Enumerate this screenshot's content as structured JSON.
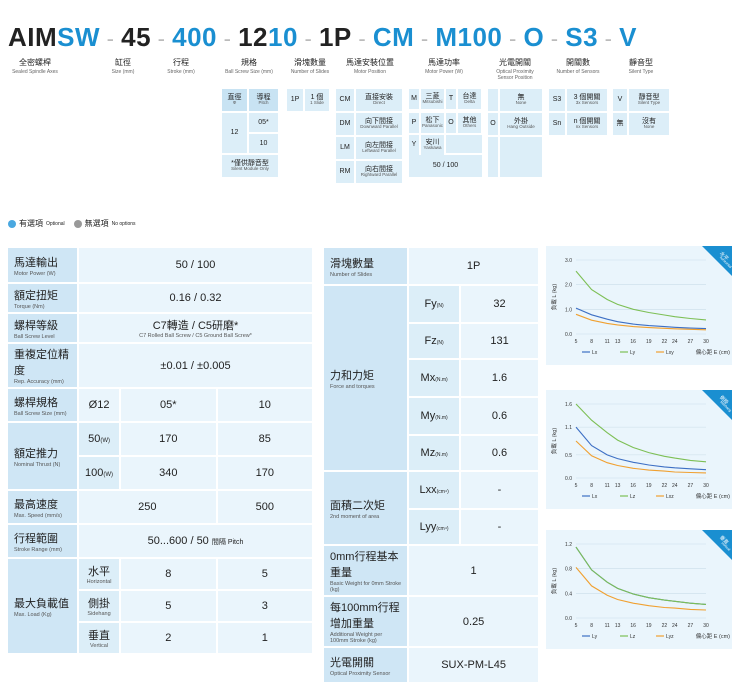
{
  "code": {
    "parts": [
      {
        "text": "AIM",
        "color": "dark"
      },
      {
        "text": "SW",
        "color": "blue"
      },
      {
        "text": "-",
        "color": "dash"
      },
      {
        "text": "45",
        "color": "dark"
      },
      {
        "text": "-",
        "color": "dash"
      },
      {
        "text": "400",
        "color": "blue"
      },
      {
        "text": "-",
        "color": "dash"
      },
      {
        "text": "12",
        "color": "dark"
      },
      {
        "text": "10",
        "color": "blue"
      },
      {
        "text": "-",
        "color": "dash"
      },
      {
        "text": "1P",
        "color": "dark"
      },
      {
        "text": "-",
        "color": "dash"
      },
      {
        "text": "CM",
        "color": "blue"
      },
      {
        "text": "-",
        "color": "dash"
      },
      {
        "text": "M100",
        "color": "blue"
      },
      {
        "text": "-",
        "color": "dash"
      },
      {
        "text": "O",
        "color": "blue"
      },
      {
        "text": "-",
        "color": "dash"
      },
      {
        "text": "S3",
        "color": "blue"
      },
      {
        "text": "-",
        "color": "dash"
      },
      {
        "text": "V",
        "color": "blue"
      }
    ],
    "labels": [
      {
        "cn": "全密螺桿",
        "en": "Sealed Spindle Axes"
      },
      {
        "cn": "缸徑",
        "en": "Size (mm)"
      },
      {
        "cn": "行程",
        "en": "Stroke (mm)"
      },
      {
        "cn": "規格",
        "en": "Ball Screw Size (mm)"
      },
      {
        "cn": "滑塊數量",
        "en": "Number of Slides"
      },
      {
        "cn": "馬達安裝位置",
        "en": "Motor Position"
      },
      {
        "cn": "馬達功率",
        "en": "Motor Power (W)"
      },
      {
        "cn": "光電開關",
        "en": "Optical Proximity Sensor Position"
      },
      {
        "cn": "開關數",
        "en": "Number of Sensors"
      },
      {
        "cn": "靜音型",
        "en": "Silent Type"
      }
    ]
  },
  "options": {
    "screw_header": {
      "dia": "直徑",
      "dia_sym": "Φ",
      "pitch": "導程",
      "pitch_en": "Pitch"
    },
    "screw_dia": "12",
    "screw_pitches": [
      "05*",
      "10"
    ],
    "screw_note": "*僅供靜音型",
    "screw_note_en": "Silent Module Only",
    "slide": {
      "code": "1P",
      "cn": "1 個",
      "en": "1 Slide"
    },
    "motor_pos": [
      {
        "code": "CM",
        "cn": "直接安裝",
        "en": "Direct"
      },
      {
        "code": "DM",
        "cn": "向下間接",
        "en": "Downward Parallel"
      },
      {
        "code": "LM",
        "cn": "向左間接",
        "en": "Leftward Parallel"
      },
      {
        "code": "RM",
        "cn": "向右間接",
        "en": "Rightward Parallel"
      }
    ],
    "motor_brand": [
      {
        "code": "M",
        "cn": "三菱",
        "en": "Mitsubishi"
      },
      {
        "code": "T",
        "cn": "台達",
        "en": "Delta"
      },
      {
        "code": "P",
        "cn": "松下",
        "en": "Panasonic"
      },
      {
        "code": "O",
        "cn": "其他",
        "en": "Others"
      },
      {
        "code": "Y",
        "cn": "安川",
        "en": "Yaskawa"
      }
    ],
    "motor_power": "50 / 100",
    "sensor_pos": [
      {
        "code": "",
        "cn": "無",
        "en": "None"
      },
      {
        "code": "O",
        "cn": "外掛",
        "en": "Hang Outside"
      }
    ],
    "sensor_num": [
      {
        "code": "S3",
        "cn": "3 個開關",
        "en": "3x Sensors"
      },
      {
        "code": "Sn",
        "cn": "n 個開關",
        "en": "nx Sensors"
      }
    ],
    "silent": [
      {
        "code": "V",
        "cn": "靜音型",
        "en": "Silent Type"
      },
      {
        "code": "無",
        "cn": "沒有",
        "en": "None"
      }
    ]
  },
  "legend": {
    "optional": "有選項",
    "optional_en": "Optional",
    "none": "無選項",
    "none_en": "No options"
  },
  "spec_left": {
    "motor_power": {
      "cn": "馬達輸出",
      "en": "Motor Power (W)",
      "value": "50 / 100"
    },
    "torque": {
      "cn": "額定扭矩",
      "en": "Torque (Nm)",
      "value": "0.16 / 0.32"
    },
    "screw_grade": {
      "cn": "螺桿等級",
      "en": "Ball Screw Level",
      "value": "C7轉造 / C5研磨*",
      "value_en": "C7 Rolled Ball Screw / C5 Ground Ball Screw*"
    },
    "accuracy": {
      "cn": "重複定位精度",
      "en": "Rep. Accuracy (mm)",
      "value": "±0.01 / ±0.005"
    },
    "screw_spec": {
      "cn": "螺桿規格",
      "en": "Ball Screw Size (mm)",
      "dia": "Ø12",
      "v1": "05*",
      "v2": "10"
    },
    "thrust": {
      "cn": "額定推力",
      "en": "Nominal Thrust (N)",
      "rows": [
        {
          "w": "50",
          "unit": "(W)",
          "v1": "170",
          "v2": "85"
        },
        {
          "w": "100",
          "unit": "(W)",
          "v1": "340",
          "v2": "170"
        }
      ]
    },
    "speed": {
      "cn": "最高速度",
      "en": "Max. Speed (mm/s)",
      "v1": "250",
      "v2": "500"
    },
    "stroke": {
      "cn": "行程範圍",
      "en": "Stroke Range (mm)",
      "value": "50...600 / 50",
      "value_suffix": "間隔 Pitch"
    },
    "load": {
      "cn": "最大負載值",
      "en": "Max. Load (Kg)",
      "rows": [
        {
          "cn": "水平",
          "en": "Horizontal",
          "v1": "8",
          "v2": "5"
        },
        {
          "cn": "側掛",
          "en": "Sidehang",
          "v1": "5",
          "v2": "3"
        },
        {
          "cn": "垂直",
          "en": "Vertical",
          "v1": "2",
          "v2": "1"
        }
      ]
    }
  },
  "spec_right": {
    "slides": {
      "cn": "滑塊數量",
      "en": "Number of Slides",
      "value": "1P"
    },
    "force": {
      "cn": "力和力矩",
      "en": "Force and torques",
      "rows": [
        {
          "sym": "Fy",
          "unit": "(N)",
          "value": "32"
        },
        {
          "sym": "Fz",
          "unit": "(N)",
          "value": "131"
        },
        {
          "sym": "Mx",
          "unit": "(N.m)",
          "value": "1.6"
        },
        {
          "sym": "My",
          "unit": "(N.m)",
          "value": "0.6"
        },
        {
          "sym": "Mz",
          "unit": "(N.m)",
          "value": "0.6"
        }
      ]
    },
    "moment": {
      "cn": "面積二次矩",
      "en": "2nd moment of area",
      "rows": [
        {
          "sym": "Lxx",
          "unit": "(cm⁴)",
          "value": "-"
        },
        {
          "sym": "Lyy",
          "unit": "(cm⁴)",
          "value": "-"
        }
      ]
    },
    "base_weight": {
      "cn": "0mm行程基本重量",
      "en": "Basic Weight for 0mm Stroke (kg)",
      "value": "1"
    },
    "add_weight": {
      "cn": "每100mm行程增加重量",
      "en": "Additional Weight per 100mm Stroke (kg)",
      "value": "0.25"
    },
    "sensor": {
      "cn": "光電開關",
      "en": "Optical Proximity Sensor",
      "value": "SUX-PM-L45"
    }
  },
  "chart_data": [
    {
      "type": "line",
      "tag": "水平",
      "tag_en": "horizontal",
      "ylabel": "負載 L (kg)",
      "xlabel": "偏心距 E (cm)",
      "x": [
        5,
        8,
        11,
        13,
        16,
        19,
        22,
        24,
        27,
        30
      ],
      "ylim": [
        0,
        3.0
      ],
      "yticks": [
        0.0,
        1.0,
        2.0,
        3.0
      ],
      "series": [
        {
          "name": "Lx",
          "color": "#3d6fc4",
          "values": [
            1.05,
            0.78,
            0.6,
            0.5,
            0.4,
            0.34,
            0.3,
            0.27,
            0.24,
            0.22
          ]
        },
        {
          "name": "Ly",
          "color": "#7dbf55",
          "values": [
            2.55,
            1.8,
            1.4,
            1.2,
            1.0,
            0.87,
            0.77,
            0.7,
            0.63,
            0.57
          ]
        },
        {
          "name": "Lxy",
          "color": "#f0a030",
          "values": [
            0.8,
            0.56,
            0.43,
            0.37,
            0.3,
            0.26,
            0.23,
            0.21,
            0.19,
            0.17
          ]
        }
      ]
    },
    {
      "type": "line",
      "tag": "側掛",
      "tag_en": "sidehang",
      "ylabel": "負載 L (kg)",
      "xlabel": "偏心距 E (cm)",
      "x": [
        5,
        8,
        11,
        13,
        16,
        19,
        22,
        24,
        27,
        30
      ],
      "ylim": [
        0,
        1.6
      ],
      "yticks": [
        0.0,
        0.5,
        1.1,
        1.6
      ],
      "series": [
        {
          "name": "Lx",
          "color": "#3d6fc4",
          "values": [
            1.1,
            0.7,
            0.5,
            0.42,
            0.34,
            0.28,
            0.24,
            0.22,
            0.2,
            0.18
          ]
        },
        {
          "name": "Lz",
          "color": "#7dbf55",
          "values": [
            1.6,
            1.25,
            0.98,
            0.82,
            0.66,
            0.55,
            0.47,
            0.43,
            0.38,
            0.35
          ]
        },
        {
          "name": "Lxz",
          "color": "#f0a030",
          "values": [
            0.8,
            0.48,
            0.33,
            0.27,
            0.21,
            0.17,
            0.15,
            0.13,
            0.12,
            0.11
          ]
        }
      ]
    },
    {
      "type": "line",
      "tag": "垂直",
      "tag_en": "vertical",
      "ylabel": "負載 L (kg)",
      "xlabel": "偏心距 E (cm)",
      "x": [
        5,
        8,
        11,
        13,
        16,
        19,
        22,
        24,
        27,
        30
      ],
      "ylim": [
        0,
        1.2
      ],
      "yticks": [
        0.0,
        0.4,
        0.8,
        1.2
      ],
      "series": [
        {
          "name": "Ly",
          "color": "#3d6fc4",
          "values": [
            1.15,
            0.78,
            0.58,
            0.48,
            0.39,
            0.33,
            0.29,
            0.27,
            0.24,
            0.22
          ]
        },
        {
          "name": "Lz",
          "color": "#7dbf55",
          "values": [
            1.15,
            0.78,
            0.58,
            0.48,
            0.39,
            0.33,
            0.29,
            0.27,
            0.24,
            0.22
          ]
        },
        {
          "name": "Lyz",
          "color": "#f0a030",
          "values": [
            0.82,
            0.52,
            0.37,
            0.3,
            0.24,
            0.2,
            0.17,
            0.16,
            0.14,
            0.13
          ]
        }
      ]
    }
  ]
}
